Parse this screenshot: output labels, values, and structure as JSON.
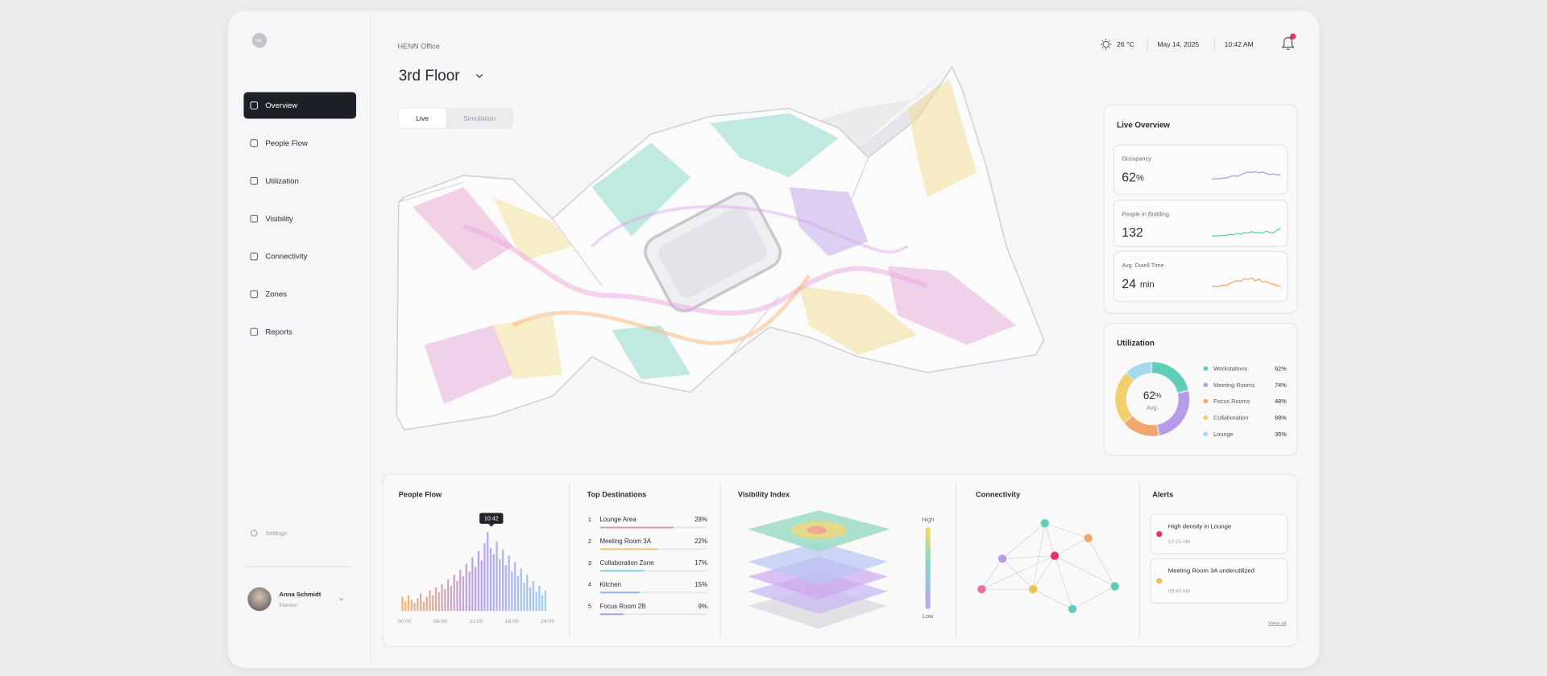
{
  "sidebar": {
    "avatar": "RK",
    "nav": [
      "Overview",
      "People Flow",
      "Utilization",
      "Visibility",
      "Connectivity",
      "Zones",
      "Reports"
    ],
    "settings": "Settings",
    "user": {
      "name": "Anna Schmidt",
      "role": "Planner"
    }
  },
  "header": {
    "workspace": "HENN Office",
    "floor": "3rd Floor",
    "modes": [
      "Live",
      "Simulation"
    ],
    "weather": "26 °C",
    "date": "May 14, 2025",
    "time": "10:42 AM"
  },
  "live_overview": {
    "title": "Live Overview",
    "metrics": [
      {
        "label": "Occupancy",
        "value": 62,
        "unit": "%",
        "color": "#b794e8",
        "trend": [
          30,
          32,
          31,
          35,
          34,
          40,
          45,
          42,
          48,
          55,
          60,
          58,
          62,
          56,
          60,
          54,
          50,
          52,
          48,
          50
        ]
      },
      {
        "label": "People in Building",
        "value": 132,
        "color": "#5ccbb5",
        "trend": [
          22,
          24,
          23,
          26,
          25,
          30,
          28,
          34,
          30,
          38,
          35,
          42,
          36,
          40,
          34,
          44,
          38,
          36,
          48,
          56
        ]
      },
      {
        "label": "Avg. Dwell Time",
        "value": 24,
        "unit": "min",
        "color": "#f3a66b",
        "trend": [
          25,
          28,
          26,
          32,
          30,
          38,
          45,
          52,
          48,
          60,
          55,
          62,
          50,
          58,
          45,
          48,
          40,
          35,
          30,
          28
        ]
      }
    ]
  },
  "utilization": {
    "title": "Utilization",
    "average": {
      "value": 62,
      "unit": "%",
      "label": "Avg."
    },
    "items": [
      {
        "name": "Workstations",
        "value": 62,
        "label": "62%",
        "color": "#5ecdb9"
      },
      {
        "name": "Meeting Rooms",
        "value": 74,
        "label": "74%",
        "color": "#b79be9"
      },
      {
        "name": "Focus Rooms",
        "value": 48,
        "label": "48%",
        "color": "#f3a66b"
      },
      {
        "name": "Collaboration",
        "value": 68,
        "label": "68%",
        "color": "#f2d16b"
      },
      {
        "name": "Lounge",
        "value": 35,
        "label": "35%",
        "color": "#a6d8f0"
      }
    ]
  },
  "people_flow": {
    "title": "People Flow",
    "tooltip": "10:42",
    "xticks": [
      "00:00",
      "06:00",
      "12:00",
      "18:00",
      "24:00"
    ],
    "values": [
      18,
      12,
      20,
      14,
      10,
      16,
      22,
      12,
      18,
      26,
      20,
      30,
      24,
      34,
      28,
      40,
      32,
      46,
      38,
      52,
      44,
      60,
      50,
      68,
      56,
      76,
      64,
      86,
      100,
      80,
      72,
      88,
      66,
      78,
      58,
      70,
      50,
      62,
      44,
      54,
      36,
      46,
      30,
      38,
      24,
      32,
      20,
      26
    ]
  },
  "top_destinations": {
    "title": "Top Destinations",
    "items": [
      {
        "rank": 1,
        "name": "Lounge Area",
        "value": 28,
        "label": "28%",
        "color": "#ec8fb4"
      },
      {
        "rank": 2,
        "name": "Meeting Room 3A",
        "value": 22,
        "label": "22%",
        "color": "#f2c46b"
      },
      {
        "rank": 3,
        "name": "Collaboration Zone",
        "value": 17,
        "label": "17%",
        "color": "#7fd3d8"
      },
      {
        "rank": 4,
        "name": "Kitchen",
        "value": 15,
        "label": "15%",
        "color": "#8fb4ec"
      },
      {
        "rank": 5,
        "name": "Focus Room 2B",
        "value": 9,
        "label": "9%",
        "color": "#b79be9"
      }
    ]
  },
  "visibility_index": {
    "title": "Visibility Index",
    "high": "High",
    "low": "Low"
  },
  "connectivity": {
    "title": "Connectivity"
  },
  "alerts": {
    "title": "Alerts",
    "items": [
      {
        "title": "High density in Lounge",
        "time": "10:15 AM",
        "color": "#e2336b"
      },
      {
        "title": "Meeting Room 3A underutilized",
        "time": "09:40 AM",
        "color": "#e8c54a"
      }
    ],
    "view_all": "View all"
  }
}
